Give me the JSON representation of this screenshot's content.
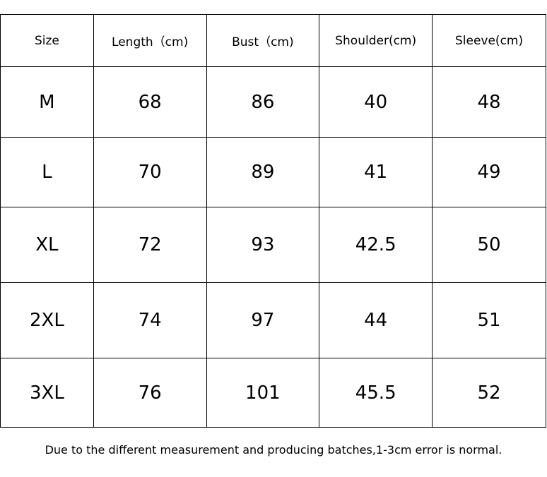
{
  "table": {
    "headers": [
      "Size",
      "Length（cm)",
      "Bust（cm)",
      "Shoulder(cm)",
      "Sleeve(cm)"
    ],
    "rows": [
      [
        "M",
        "68",
        "86",
        "40",
        "48"
      ],
      [
        "L",
        "70",
        "89",
        "41",
        "49"
      ],
      [
        "XL",
        "72",
        "93",
        "42.5",
        "50"
      ],
      [
        "2XL",
        "74",
        "97",
        "44",
        "51"
      ],
      [
        "3XL",
        "76",
        "101",
        "45.5",
        "52"
      ]
    ]
  },
  "note": "Due to the different measurement and producing batches,1-3cm error is normal."
}
